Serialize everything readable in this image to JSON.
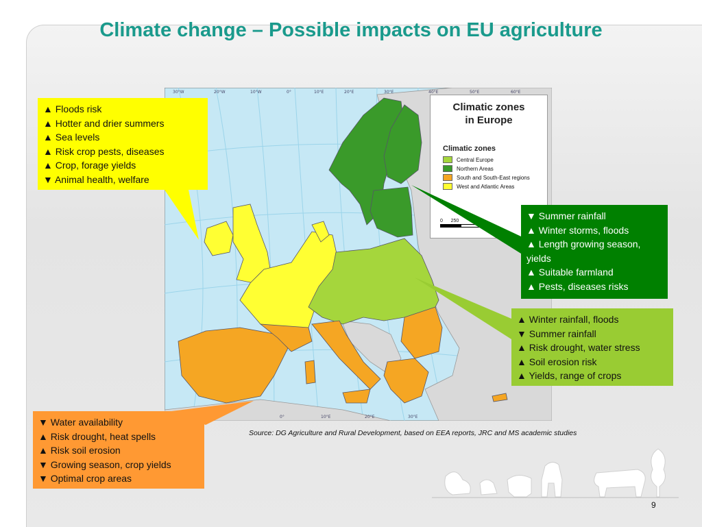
{
  "title": "Climate change – Possible impacts on EU agriculture",
  "map": {
    "legend_title": "Climatic zones\nin Europe",
    "legend_subtitle": "Climatic zones",
    "zones": [
      {
        "label": "Central Europe",
        "color": "#a5d63c"
      },
      {
        "label": "Northern Areas",
        "color": "#3a9a2a"
      },
      {
        "label": "South and South-East regions",
        "color": "#f5a623"
      },
      {
        "label": "West and Atlantic Areas",
        "color": "#ffff33"
      }
    ],
    "scale_start": "0",
    "scale_mid": "250",
    "top_ticks": [
      "30°W",
      "20°W",
      "10°W",
      "0°",
      "10°E",
      "20°E",
      "30°E",
      "40°E",
      "50°E",
      "60°E"
    ],
    "bottom_ticks": [
      "0°",
      "10°E",
      "20°E",
      "30°E"
    ],
    "colors": {
      "sea": "#c6e8f5",
      "land_other": "#d9d9d9",
      "graticule": "#9bd4ea"
    }
  },
  "callouts": {
    "west": [
      "▲ Floods risk",
      "▲ Hotter and drier summers",
      "▲ Sea levels",
      "▲ Risk crop pests, diseases",
      "▲ Crop, forage yields",
      "▼ Animal health, welfare"
    ],
    "north": [
      "▼ Summer rainfall",
      "▲ Winter storms, floods",
      "▲ Length growing season,",
      "yields",
      "▲ Suitable farmland",
      "▲ Pests, diseases risks"
    ],
    "central": [
      "▲ Winter rainfall, floods",
      "▼ Summer rainfall",
      "▲ Risk drought, water stress",
      "▲ Soil erosion risk",
      "▲ Yields, range of crops"
    ],
    "south": [
      "▼ Water availability",
      "▲ Risk drought, heat spells",
      "▲ Risk soil erosion",
      "▼ Growing season, crop yields",
      "▼ Optimal crop areas"
    ]
  },
  "source": "Source: DG Agriculture and Rural Development, based on EEA reports, JRC and MS academic studies",
  "page_number": "9"
}
